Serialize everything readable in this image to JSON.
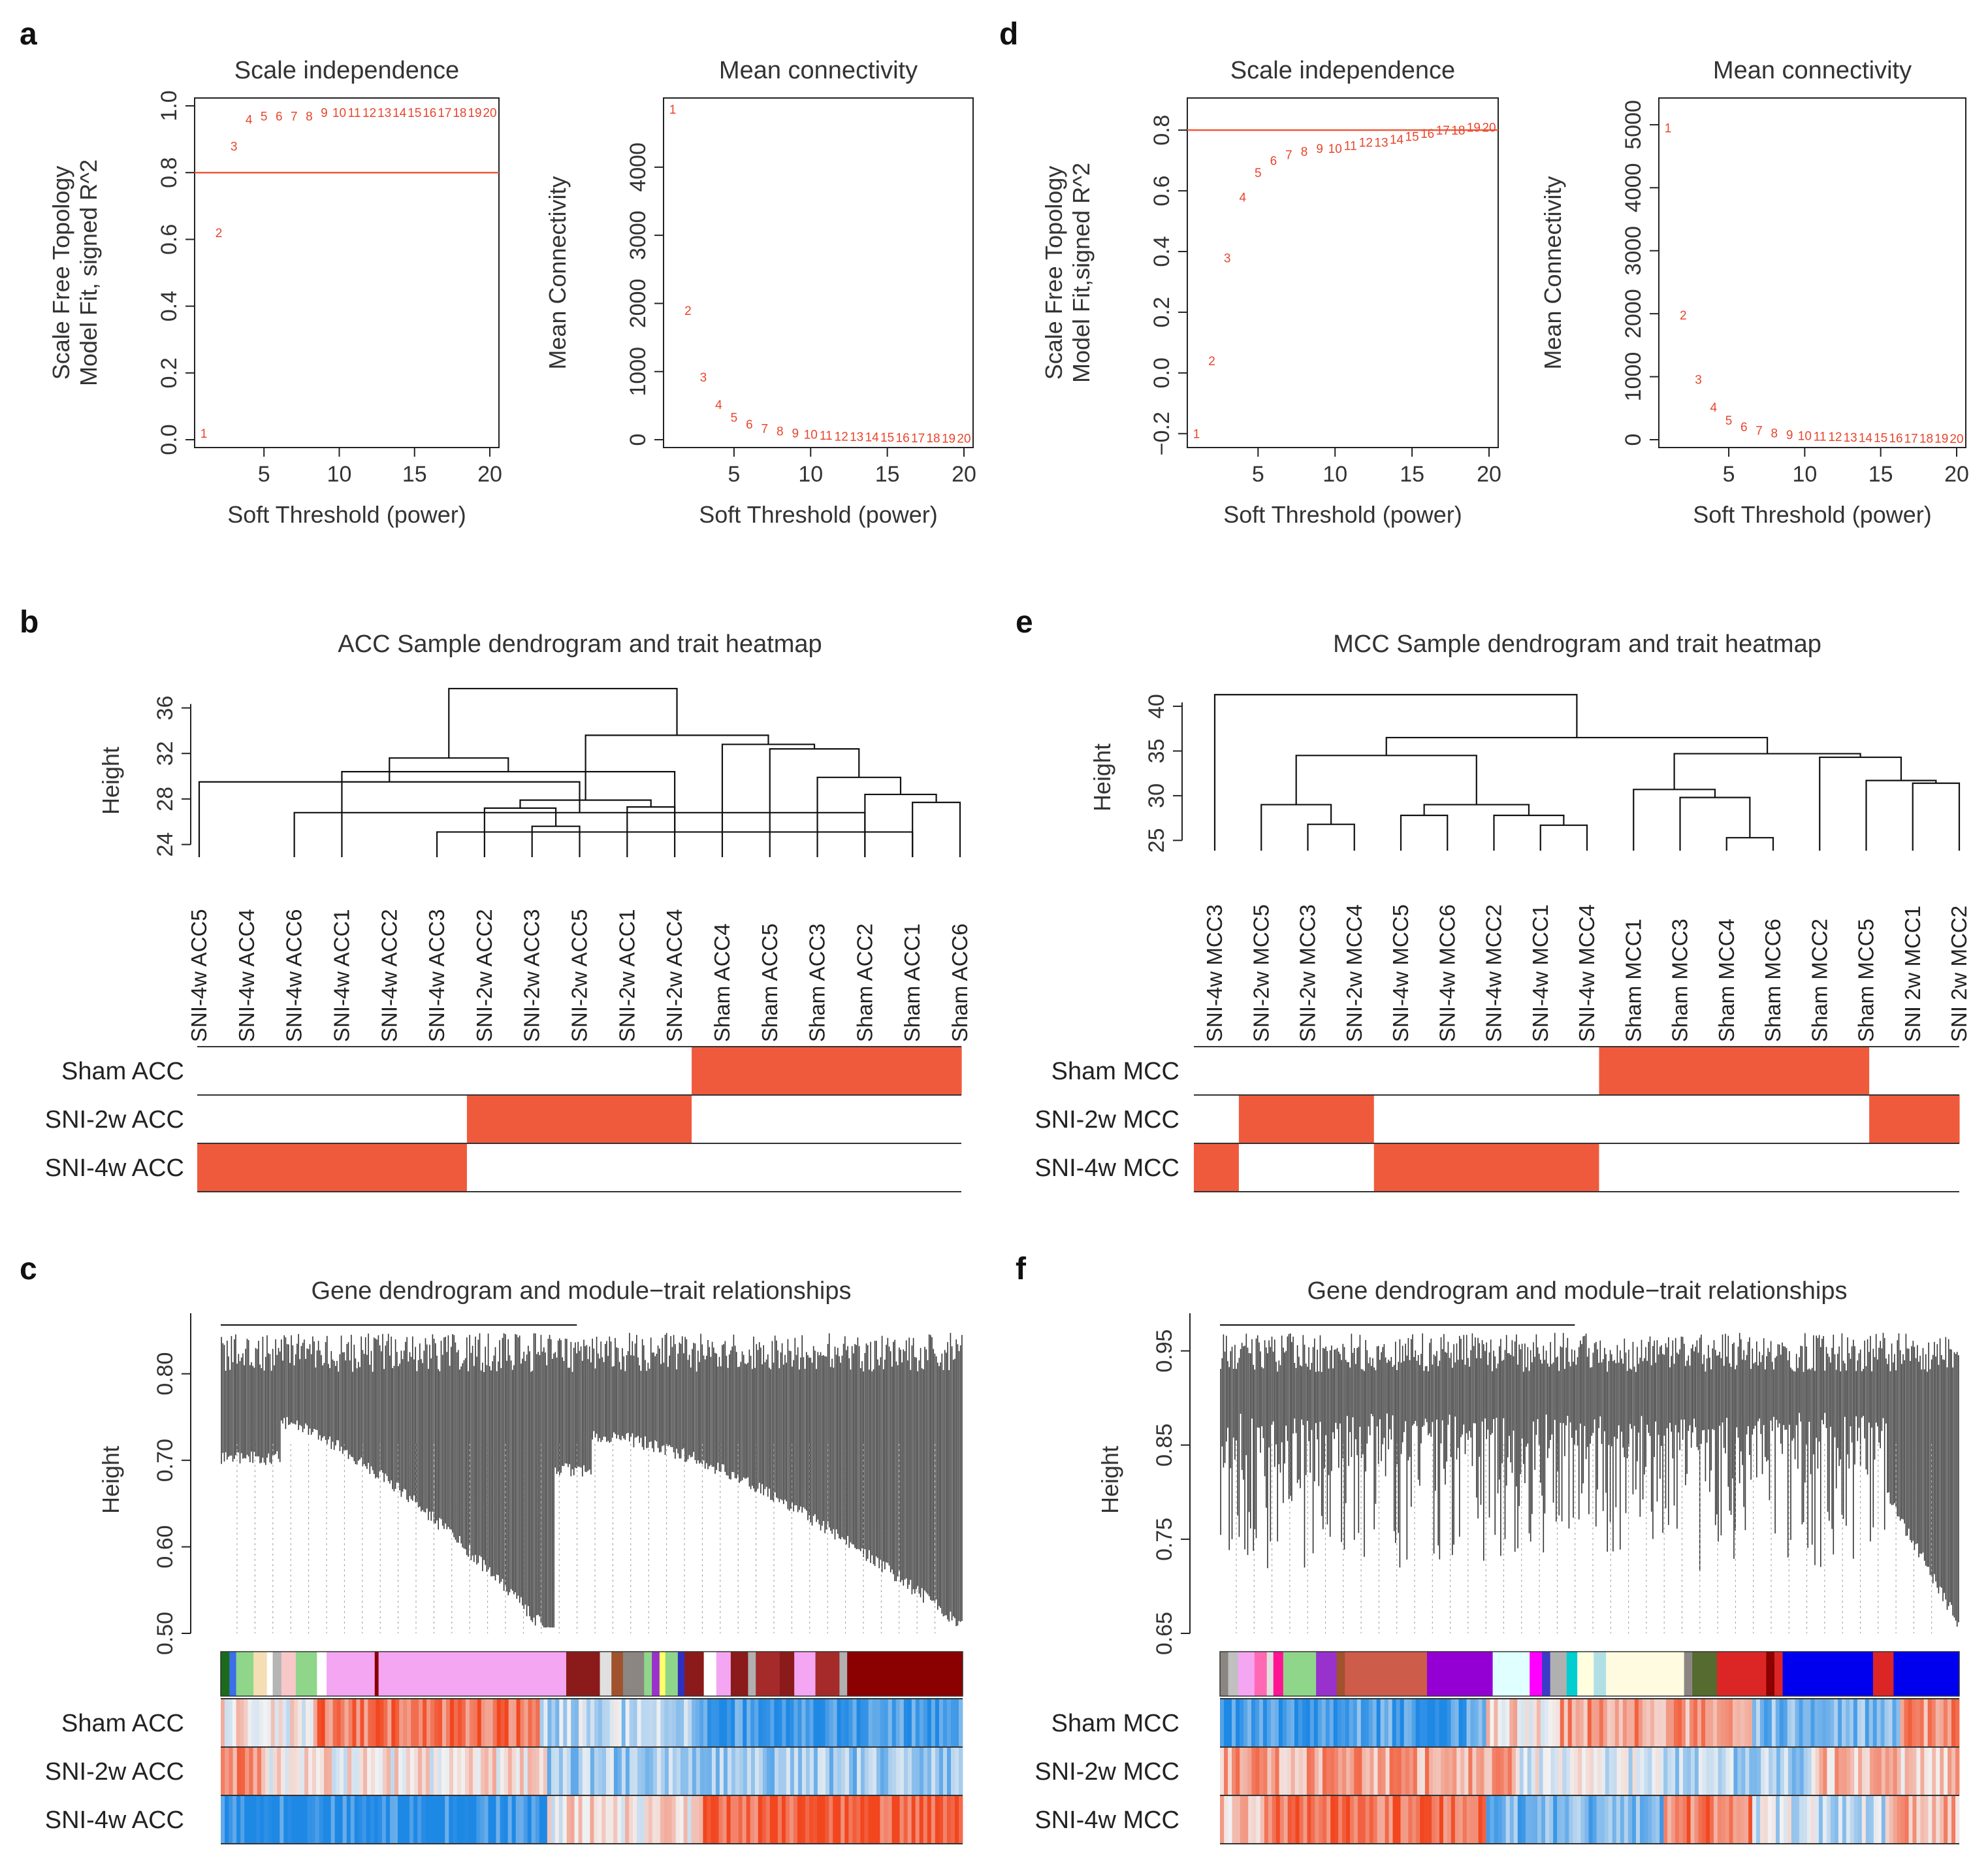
{
  "colors": {
    "accent": "#f05a3c",
    "line": "#111111",
    "text": "#333333",
    "heat_low": "#1e88e5",
    "heat_mid": "#f2f2f2",
    "heat_high": "#f2461f"
  },
  "panels": {
    "a": {
      "letter": "a"
    },
    "b": {
      "letter": "b"
    },
    "c": {
      "letter": "c"
    },
    "d": {
      "letter": "d"
    },
    "e": {
      "letter": "e"
    },
    "f": {
      "letter": "f"
    }
  },
  "chart_data": [
    {
      "id": "a_scale",
      "panel": "a",
      "type": "scatter",
      "title": "Scale independence",
      "xlabel": "Soft Threshold (power)",
      "ylabel_lines": [
        "Scale Free Topology",
        "Model Fit, signed R^2"
      ],
      "xlim": [
        1,
        20
      ],
      "ylim": [
        0,
        1
      ],
      "xticks": [
        5,
        10,
        15,
        20
      ],
      "yticks": [
        0.0,
        0.2,
        0.4,
        0.6,
        0.8,
        1.0
      ],
      "ytick_labels": [
        "0.0",
        "0.2",
        "0.4",
        "0.6",
        "0.8",
        "1.0"
      ],
      "hline": 0.8,
      "x": [
        1,
        2,
        3,
        4,
        5,
        6,
        7,
        8,
        9,
        10,
        11,
        12,
        13,
        14,
        15,
        16,
        17,
        18,
        19,
        20
      ],
      "y": [
        0.02,
        0.62,
        0.88,
        0.96,
        0.97,
        0.97,
        0.97,
        0.97,
        0.98,
        0.98,
        0.98,
        0.98,
        0.98,
        0.98,
        0.98,
        0.98,
        0.98,
        0.98,
        0.98,
        0.98
      ],
      "point_labels": [
        "1",
        "2",
        "3",
        "4",
        "5",
        "6",
        "7",
        "8",
        "9",
        "10",
        "11",
        "12",
        "13",
        "14",
        "15",
        "16",
        "17",
        "18",
        "19",
        "20"
      ]
    },
    {
      "id": "a_mean",
      "panel": "a",
      "type": "scatter",
      "title": "Mean connectivity",
      "xlabel": "Soft Threshold (power)",
      "ylabel_lines": [
        "Mean Connectivity"
      ],
      "xlim": [
        1,
        20
      ],
      "ylim": [
        0,
        4900
      ],
      "xticks": [
        5,
        10,
        15,
        20
      ],
      "yticks": [
        0,
        1000,
        2000,
        3000,
        4000
      ],
      "ytick_labels": [
        "0",
        "1000",
        "2000",
        "3000",
        "4000"
      ],
      "x": [
        1,
        2,
        3,
        4,
        5,
        6,
        7,
        8,
        9,
        10,
        11,
        12,
        13,
        14,
        15,
        16,
        17,
        18,
        19,
        20
      ],
      "y": [
        4850,
        1900,
        920,
        520,
        330,
        230,
        170,
        130,
        100,
        80,
        65,
        55,
        48,
        42,
        38,
        34,
        30,
        28,
        26,
        24
      ],
      "point_labels": [
        "1",
        "2",
        "3",
        "4",
        "5",
        "6",
        "7",
        "8",
        "9",
        "10",
        "11",
        "12",
        "13",
        "14",
        "15",
        "16",
        "17",
        "18",
        "19",
        "20"
      ]
    },
    {
      "id": "d_scale",
      "panel": "d",
      "type": "scatter",
      "title": "Scale independence",
      "xlabel": "Soft Threshold (power)",
      "ylabel_lines": [
        "Scale Free Topology",
        "Model Fit,signed R^2"
      ],
      "xlim": [
        1,
        20
      ],
      "ylim": [
        -0.22,
        0.88
      ],
      "xticks": [
        5,
        10,
        15,
        20
      ],
      "yticks": [
        -0.2,
        0.0,
        0.2,
        0.4,
        0.6,
        0.8
      ],
      "ytick_labels": [
        "−0.2",
        "0.0",
        "0.2",
        "0.4",
        "0.6",
        "0.8"
      ],
      "hline": 0.8,
      "x": [
        1,
        2,
        3,
        4,
        5,
        6,
        7,
        8,
        9,
        10,
        11,
        12,
        13,
        14,
        15,
        16,
        17,
        18,
        19,
        20
      ],
      "y": [
        -0.2,
        0.04,
        0.38,
        0.58,
        0.66,
        0.7,
        0.72,
        0.73,
        0.74,
        0.74,
        0.75,
        0.76,
        0.76,
        0.77,
        0.78,
        0.79,
        0.8,
        0.8,
        0.81,
        0.81
      ],
      "point_labels": [
        "1",
        "2",
        "3",
        "4",
        "5",
        "6",
        "7",
        "8",
        "9",
        "10",
        "11",
        "12",
        "13",
        "14",
        "15",
        "16",
        "17",
        "18",
        "19",
        "20"
      ]
    },
    {
      "id": "d_mean",
      "panel": "d",
      "type": "scatter",
      "title": "Mean connectivity",
      "xlabel": "Soft Threshold (power)",
      "ylabel_lines": [
        "Mean Connectivity"
      ],
      "xlim": [
        1,
        20
      ],
      "ylim": [
        0,
        5300
      ],
      "xticks": [
        5,
        10,
        15,
        20
      ],
      "yticks": [
        0,
        1000,
        2000,
        3000,
        4000,
        5000
      ],
      "ytick_labels": [
        "0",
        "1000",
        "2000",
        "3000",
        "4000",
        "5000"
      ],
      "x": [
        1,
        2,
        3,
        4,
        5,
        6,
        7,
        8,
        9,
        10,
        11,
        12,
        13,
        14,
        15,
        16,
        17,
        18,
        19,
        20
      ],
      "y": [
        4950,
        1980,
        960,
        520,
        310,
        210,
        150,
        110,
        85,
        70,
        58,
        50,
        44,
        38,
        34,
        30,
        28,
        26,
        24,
        22
      ],
      "point_labels": [
        "1",
        "2",
        "3",
        "4",
        "5",
        "6",
        "7",
        "8",
        "9",
        "10",
        "11",
        "12",
        "13",
        "14",
        "15",
        "16",
        "17",
        "18",
        "19",
        "20"
      ]
    },
    {
      "id": "b_dendro",
      "panel": "b",
      "type": "dendrogram",
      "title": "ACC Sample dendrogram and trait heatmap",
      "ylabel": "Height",
      "ylim": [
        23,
        38.5
      ],
      "yticks": [
        24,
        28,
        32,
        36
      ],
      "leaves": [
        "SNI-4w ACC5",
        "SNI-4w ACC4",
        "SNI-4w ACC6",
        "SNI-4w ACC1",
        "SNI-4w ACC2",
        "SNI-4w ACC3",
        "SNI-2w ACC2",
        "SNI-2w ACC3",
        "SNI-2w ACC5",
        "SNI-2w ACC1",
        "SNI-2w ACC4",
        "Sham ACC4",
        "Sham ACC5",
        "Sham ACC3",
        "Sham ACC2",
        "Sham ACC1",
        "Sham ACC6"
      ],
      "tree": [
        [
          2,
          14,
          26.8
        ],
        [
          5,
          15,
          25.1
        ],
        [
          0,
          -1,
          29.5
        ],
        [
          3,
          -2,
          30.4
        ],
        [
          -3,
          -4,
          31.6
        ],
        [
          7,
          8,
          25.6
        ],
        [
          6,
          -6,
          27.2
        ],
        [
          9,
          10,
          27.3
        ],
        [
          -7,
          -8,
          27.9
        ],
        [
          15,
          16,
          27.7
        ],
        [
          14,
          -10,
          28.4
        ],
        [
          13,
          -11,
          29.9
        ],
        [
          12,
          -12,
          32.4
        ],
        [
          11,
          -13,
          32.8
        ],
        [
          -9,
          -14,
          33.6
        ],
        [
          -5,
          -15,
          37.7
        ]
      ],
      "trait_rows": [
        {
          "label": "Sham ACC",
          "values": [
            0,
            0,
            0,
            0,
            0,
            0,
            0,
            0,
            0,
            0,
            0,
            1,
            1,
            1,
            1,
            1,
            1
          ]
        },
        {
          "label": "SNI-2w ACC",
          "values": [
            0,
            0,
            0,
            0,
            0,
            0,
            1,
            1,
            1,
            1,
            1,
            0,
            0,
            0,
            0,
            0,
            0
          ]
        },
        {
          "label": "SNI-4w ACC",
          "values": [
            1,
            1,
            1,
            1,
            1,
            1,
            0,
            0,
            0,
            0,
            0,
            0,
            0,
            0,
            0,
            0,
            0
          ]
        }
      ]
    },
    {
      "id": "e_dendro",
      "panel": "e",
      "type": "dendrogram",
      "title": "MCC Sample dendrogram and trait heatmap",
      "ylabel": "Height",
      "ylim": [
        24,
        43
      ],
      "yticks": [
        25,
        30,
        35,
        40
      ],
      "leaves": [
        "SNI-4w MCC3",
        "SNI-2w MCC5",
        "SNI-2w MCC3",
        "SNI-2w MCC4",
        "SNI-4w MCC5",
        "SNI-4w MCC6",
        "SNI-4w MCC2",
        "SNI-4w MCC1",
        "SNI-4w MCC4",
        "Sham MCC1",
        "Sham MCC3",
        "Sham MCC4",
        "Sham MCC6",
        "Sham MCC2",
        "Sham MCC5",
        "SNI 2w MCC1",
        "SNI 2w MCC2"
      ],
      "tree": [
        [
          2,
          3,
          26.8
        ],
        [
          1,
          -1,
          29.0
        ],
        [
          4,
          5,
          27.8
        ],
        [
          7,
          8,
          26.7
        ],
        [
          6,
          -4,
          27.8
        ],
        [
          -3,
          -5,
          29.0
        ],
        [
          -2,
          -6,
          34.5
        ],
        [
          11,
          12,
          25.3
        ],
        [
          10,
          -8,
          29.8
        ],
        [
          9,
          -9,
          30.7
        ],
        [
          15,
          16,
          31.4
        ],
        [
          14,
          -11,
          31.7
        ],
        [
          13,
          -12,
          34.3
        ],
        [
          -10,
          -13,
          34.7
        ],
        [
          -7,
          -14,
          36.5
        ],
        [
          0,
          -15,
          41.3
        ]
      ],
      "trait_rows": [
        {
          "label": "Sham MCC",
          "values": [
            0,
            0,
            0,
            0,
            0,
            0,
            0,
            0,
            0,
            1,
            1,
            1,
            1,
            1,
            1,
            0,
            0
          ]
        },
        {
          "label": "SNI-2w MCC",
          "values": [
            0,
            1,
            1,
            1,
            0,
            0,
            0,
            0,
            0,
            0,
            0,
            0,
            0,
            0,
            0,
            1,
            1
          ]
        },
        {
          "label": "SNI-4w MCC",
          "values": [
            1,
            0,
            0,
            0,
            1,
            1,
            1,
            1,
            1,
            0,
            0,
            0,
            0,
            0,
            0,
            0,
            0
          ]
        }
      ]
    },
    {
      "id": "c_gene",
      "panel": "c",
      "type": "heatmap",
      "title": "Gene dendrogram and module−trait relationships",
      "ylabel": "Height",
      "ylim": [
        0.5,
        0.87
      ],
      "yticks": [
        0.5,
        0.6,
        0.7,
        0.8
      ],
      "ytick_labels": [
        "0.50",
        "0.60",
        "0.70",
        "0.80"
      ],
      "module_colors": [
        {
          "color": "#1b6b1b",
          "w": 0.9
        },
        {
          "color": "#3b6ee8",
          "w": 0.7
        },
        {
          "color": "#8fd68a",
          "w": 1.8
        },
        {
          "color": "#f5deb3",
          "w": 1.4
        },
        {
          "color": "#ffffff",
          "w": 0.6
        },
        {
          "color": "#b5b5b5",
          "w": 0.9
        },
        {
          "color": "#f8c8c8",
          "w": 1.5
        },
        {
          "color": "#8fd68a",
          "w": 2.2
        },
        {
          "color": "#ffffff",
          "w": 1.0
        },
        {
          "color": "#f4a6f2",
          "w": 5.0
        },
        {
          "color": "#8b0000",
          "w": 0.4
        },
        {
          "color": "#f4a6f2",
          "w": 19.5
        },
        {
          "color": "#8b1a1a",
          "w": 3.5
        },
        {
          "color": "#e0e0e0",
          "w": 1.2
        },
        {
          "color": "#a0522d",
          "w": 1.2
        },
        {
          "color": "#8b8682",
          "w": 2.2
        },
        {
          "color": "#8fd68a",
          "w": 0.8
        },
        {
          "color": "#9932cc",
          "w": 0.8
        },
        {
          "color": "#ffff66",
          "w": 0.6
        },
        {
          "color": "#8fd68a",
          "w": 1.3
        },
        {
          "color": "#3030c0",
          "w": 0.7
        },
        {
          "color": "#8b1a1a",
          "w": 2.0
        },
        {
          "color": "#ffffff",
          "w": 1.3
        },
        {
          "color": "#f4a6f2",
          "w": 1.5
        },
        {
          "color": "#8b1a1a",
          "w": 1.8
        },
        {
          "color": "#b0b0b0",
          "w": 0.8
        },
        {
          "color": "#a52a2a",
          "w": 2.5
        },
        {
          "color": "#8b1a1a",
          "w": 1.5
        },
        {
          "color": "#f4a6f2",
          "w": 2.2
        },
        {
          "color": "#a52a2a",
          "w": 2.5
        },
        {
          "color": "#b0b0b0",
          "w": 0.8
        },
        {
          "color": "#8b0000",
          "w": 12.0
        }
      ],
      "trait_rows": [
        {
          "label": "Sham ACC",
          "segments": [
            {
              "len": 13,
              "mean": 0.1
            },
            {
              "len": 30,
              "mean": 0.75
            },
            {
              "len": 21,
              "mean": -0.25
            },
            {
              "len": 36,
              "mean": -0.85
            }
          ]
        },
        {
          "label": "SNI-2w ACC",
          "segments": [
            {
              "len": 6,
              "mean": 0.6
            },
            {
              "len": 38,
              "mean": 0.1
            },
            {
              "len": 56,
              "mean": -0.4
            }
          ]
        },
        {
          "label": "SNI-4w ACC",
          "segments": [
            {
              "len": 44,
              "mean": -0.95
            },
            {
              "len": 21,
              "mean": 0.1
            },
            {
              "len": 35,
              "mean": 0.85
            }
          ]
        }
      ]
    },
    {
      "id": "f_gene",
      "panel": "f",
      "type": "heatmap",
      "title": "Gene dendrogram and module−trait relationships",
      "ylabel": "Height",
      "ylim": [
        0.65,
        0.99
      ],
      "yticks": [
        0.65,
        0.75,
        0.85,
        0.95
      ],
      "ytick_labels": [
        "0.65",
        "0.75",
        "0.85",
        "0.95"
      ],
      "module_colors": [
        {
          "color": "#8b8682",
          "w": 1.0
        },
        {
          "color": "#c0c0c0",
          "w": 1.2
        },
        {
          "color": "#f4a6f2",
          "w": 2.0
        },
        {
          "color": "#ff69b4",
          "w": 1.5
        },
        {
          "color": "#e0e0e0",
          "w": 0.8
        },
        {
          "color": "#ff1493",
          "w": 1.2
        },
        {
          "color": "#8fd68a",
          "w": 4.0
        },
        {
          "color": "#9932cc",
          "w": 2.5
        },
        {
          "color": "#a0522d",
          "w": 1.0
        },
        {
          "color": "#cd5c4a",
          "w": 10.0
        },
        {
          "color": "#9400d3",
          "w": 8.0
        },
        {
          "color": "#e0ffff",
          "w": 4.5
        },
        {
          "color": "#ff00ff",
          "w": 1.5
        },
        {
          "color": "#3b3bc7",
          "w": 1.0
        },
        {
          "color": "#b0b0b0",
          "w": 2.0
        },
        {
          "color": "#00ced1",
          "w": 1.3
        },
        {
          "color": "#ffffe0",
          "w": 2.0
        },
        {
          "color": "#b0e0e6",
          "w": 1.5
        },
        {
          "color": "#fffbe0",
          "w": 9.5
        },
        {
          "color": "#8b8682",
          "w": 1.0
        },
        {
          "color": "#556b2f",
          "w": 3.0
        },
        {
          "color": "#dc2626",
          "w": 6.0
        },
        {
          "color": "#8b0000",
          "w": 1.0
        },
        {
          "color": "#dc2626",
          "w": 1.0
        },
        {
          "color": "#0000ee",
          "w": 11.0
        },
        {
          "color": "#dc2626",
          "w": 2.5
        },
        {
          "color": "#0000ee",
          "w": 8.0
        }
      ],
      "trait_rows": [
        {
          "label": "Sham MCC",
          "segments": [
            {
              "len": 36,
              "mean": -0.75
            },
            {
              "len": 10,
              "mean": 0.15
            },
            {
              "len": 26,
              "mean": 0.5
            },
            {
              "len": 20,
              "mean": -0.5
            },
            {
              "len": 8,
              "mean": 0.55
            }
          ]
        },
        {
          "label": "SNI-2w MCC",
          "segments": [
            {
              "len": 40,
              "mean": 0.45
            },
            {
              "len": 20,
              "mean": -0.1
            },
            {
              "len": 20,
              "mean": -0.35
            },
            {
              "len": 20,
              "mean": 0.3
            }
          ]
        },
        {
          "label": "SNI-4w MCC",
          "segments": [
            {
              "len": 6,
              "mean": 0.2
            },
            {
              "len": 30,
              "mean": 0.75
            },
            {
              "len": 24,
              "mean": -0.55
            },
            {
              "len": 12,
              "mean": 0.65
            },
            {
              "len": 18,
              "mean": -0.2
            },
            {
              "len": 10,
              "mean": 0.4
            }
          ]
        }
      ]
    }
  ]
}
